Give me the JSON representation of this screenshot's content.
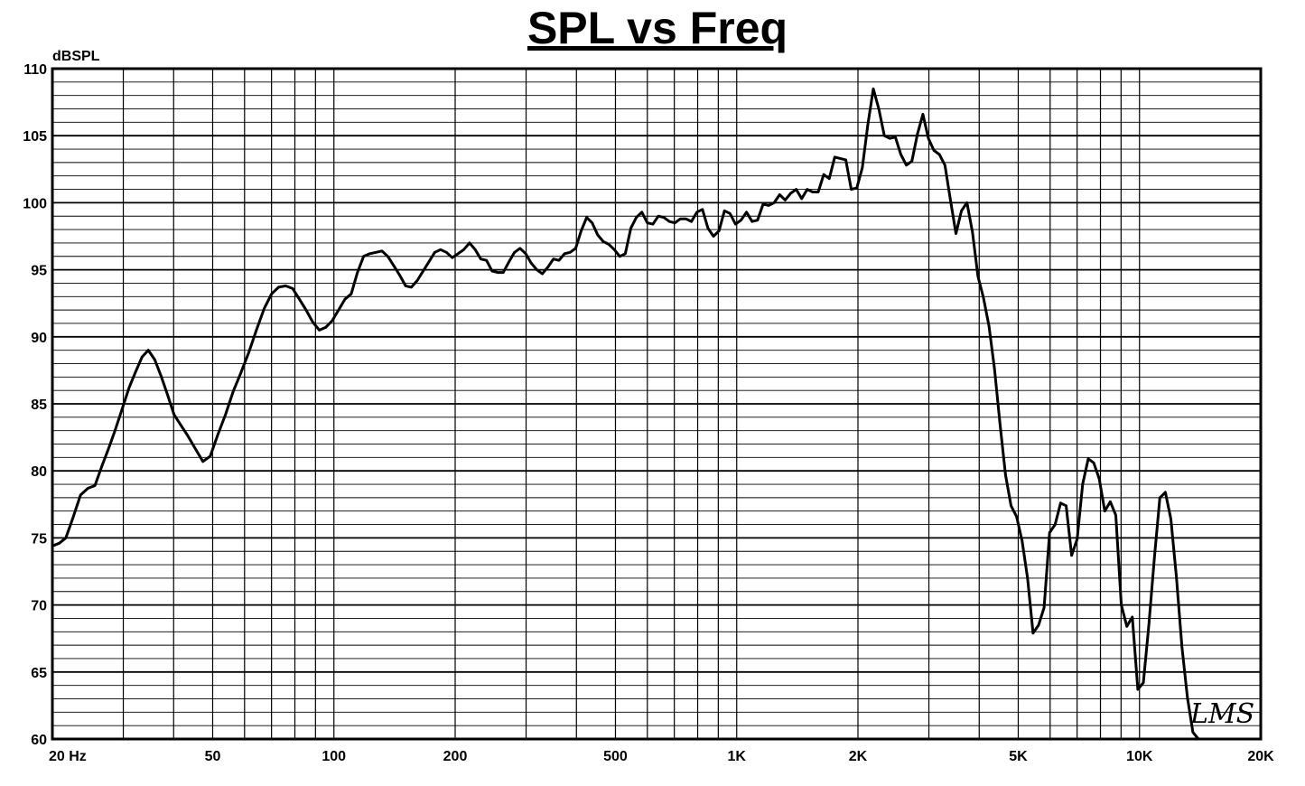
{
  "chart_data": {
    "type": "line",
    "title": "SPL vs Freq",
    "ylabel": "dBSPL",
    "xlabel": "",
    "x_scale": "log",
    "xlim": [
      20,
      20000
    ],
    "ylim": [
      60,
      110
    ],
    "y_ticks": [
      60,
      65,
      70,
      75,
      80,
      85,
      90,
      95,
      100,
      105,
      110
    ],
    "y_tick_labels": [
      "60",
      "65",
      "70",
      "75",
      "80",
      "85",
      "90",
      "95",
      "100",
      "105",
      "110"
    ],
    "x_ticks": [
      20,
      50,
      100,
      200,
      500,
      1000,
      2000,
      5000,
      10000,
      20000
    ],
    "x_tick_labels": [
      "20  Hz",
      "50",
      "100",
      "200",
      "500",
      "1K",
      "2K",
      "5K",
      "10K",
      "20K"
    ],
    "grid": true,
    "logo_text": "LMS",
    "series": [
      {
        "name": "",
        "color": "#000000",
        "points": [
          [
            20,
            74.4
          ],
          [
            20.8,
            74.6
          ],
          [
            21.6,
            75.0
          ],
          [
            22.5,
            76.5
          ],
          [
            23.5,
            78.2
          ],
          [
            24.5,
            78.7
          ],
          [
            25.5,
            78.9
          ],
          [
            26.5,
            80.3
          ],
          [
            27.6,
            81.7
          ],
          [
            28.6,
            83.0
          ],
          [
            29.8,
            84.6
          ],
          [
            31.0,
            86.2
          ],
          [
            32.2,
            87.4
          ],
          [
            33.4,
            88.5
          ],
          [
            34.6,
            89.0
          ],
          [
            35.9,
            88.3
          ],
          [
            37.2,
            87.1
          ],
          [
            38.6,
            85.7
          ],
          [
            40.1,
            84.2
          ],
          [
            41.7,
            83.4
          ],
          [
            43.4,
            82.6
          ],
          [
            45.2,
            81.7
          ],
          [
            47.3,
            80.7
          ],
          [
            49.3,
            81.1
          ],
          [
            51.5,
            82.7
          ],
          [
            53.8,
            84.2
          ],
          [
            56.2,
            85.9
          ],
          [
            58.7,
            87.3
          ],
          [
            61.4,
            88.8
          ],
          [
            64.2,
            90.5
          ],
          [
            67.1,
            92.1
          ],
          [
            70.0,
            93.2
          ],
          [
            72.9,
            93.7
          ],
          [
            75.9,
            93.8
          ],
          [
            79.0,
            93.6
          ],
          [
            82.1,
            92.8
          ],
          [
            85.3,
            92.0
          ],
          [
            88.6,
            91.1
          ],
          [
            92.0,
            90.5
          ],
          [
            95.4,
            90.7
          ],
          [
            99.0,
            91.2
          ],
          [
            102.7,
            92.0
          ],
          [
            106.5,
            92.8
          ],
          [
            110.4,
            93.2
          ],
          [
            114.4,
            94.8
          ],
          [
            118.5,
            96.0
          ],
          [
            122.8,
            96.2
          ],
          [
            127.2,
            96.3
          ],
          [
            131.6,
            96.4
          ],
          [
            136.1,
            96.0
          ],
          [
            140.8,
            95.3
          ],
          [
            145.6,
            94.6
          ],
          [
            150.6,
            93.8
          ],
          [
            155.7,
            93.7
          ],
          [
            161.0,
            94.2
          ],
          [
            166.5,
            94.9
          ],
          [
            172.2,
            95.6
          ],
          [
            178.0,
            96.3
          ],
          [
            184.0,
            96.5
          ],
          [
            190.2,
            96.3
          ],
          [
            196.7,
            95.9
          ],
          [
            203.3,
            96.2
          ],
          [
            210.1,
            96.5
          ],
          [
            217.1,
            97.0
          ],
          [
            224.3,
            96.5
          ],
          [
            231.6,
            95.8
          ],
          [
            239.2,
            95.7
          ],
          [
            247.0,
            94.9
          ],
          [
            255.1,
            94.8
          ],
          [
            263.4,
            94.8
          ],
          [
            272.0,
            95.6
          ],
          [
            280.8,
            96.3
          ],
          [
            289.9,
            96.6
          ],
          [
            299.3,
            96.2
          ],
          [
            308.9,
            95.5
          ],
          [
            318.9,
            95.0
          ],
          [
            329.2,
            94.7
          ],
          [
            339.8,
            95.2
          ],
          [
            350.8,
            95.8
          ],
          [
            362.1,
            95.7
          ],
          [
            373.8,
            96.2
          ],
          [
            385.8,
            96.3
          ],
          [
            398.2,
            96.6
          ],
          [
            411.0,
            97.9
          ],
          [
            424.2,
            98.9
          ],
          [
            437.8,
            98.5
          ],
          [
            451.8,
            97.6
          ],
          [
            466.3,
            97.1
          ],
          [
            481.3,
            96.9
          ],
          [
            496.7,
            96.5
          ],
          [
            512.6,
            96.0
          ],
          [
            529.0,
            96.2
          ],
          [
            545.9,
            98.1
          ],
          [
            563.4,
            98.9
          ],
          [
            581.4,
            99.3
          ],
          [
            600.0,
            98.5
          ],
          [
            619.2,
            98.4
          ],
          [
            639.0,
            99.0
          ],
          [
            659.4,
            98.9
          ],
          [
            680.5,
            98.6
          ],
          [
            702.3,
            98.5
          ],
          [
            724.8,
            98.8
          ],
          [
            748.0,
            98.8
          ],
          [
            772.0,
            98.6
          ],
          [
            796.7,
            99.3
          ],
          [
            822.2,
            99.5
          ],
          [
            848.5,
            98.1
          ],
          [
            875.6,
            97.5
          ],
          [
            903.7,
            97.9
          ],
          [
            932.6,
            99.4
          ],
          [
            962.5,
            99.2
          ],
          [
            993.3,
            98.4
          ],
          [
            1025.1,
            98.7
          ],
          [
            1057.9,
            99.3
          ],
          [
            1091.8,
            98.6
          ],
          [
            1126.7,
            98.7
          ],
          [
            1162.8,
            99.9
          ],
          [
            1200.0,
            99.8
          ],
          [
            1238.4,
            100.0
          ],
          [
            1278.0,
            100.6
          ],
          [
            1318.9,
            100.2
          ],
          [
            1361.1,
            100.7
          ],
          [
            1404.7,
            101.0
          ],
          [
            1449.7,
            100.3
          ],
          [
            1496.1,
            101.0
          ],
          [
            1544.0,
            100.8
          ],
          [
            1593.4,
            100.8
          ],
          [
            1644.4,
            102.1
          ],
          [
            1697.0,
            101.8
          ],
          [
            1751.3,
            103.4
          ],
          [
            1807.3,
            103.3
          ],
          [
            1865.2,
            103.2
          ],
          [
            1924.9,
            101.0
          ],
          [
            1986.5,
            101.1
          ],
          [
            2050.1,
            102.6
          ],
          [
            2115.7,
            105.8
          ],
          [
            2183.4,
            108.5
          ],
          [
            2253.3,
            107.0
          ],
          [
            2325.4,
            105.0
          ],
          [
            2399.8,
            104.8
          ],
          [
            2476.6,
            104.9
          ],
          [
            2555.9,
            103.6
          ],
          [
            2637.7,
            102.8
          ],
          [
            2722.1,
            103.1
          ],
          [
            2809.2,
            105.1
          ],
          [
            2899.1,
            106.6
          ],
          [
            2991.9,
            104.8
          ],
          [
            3087.6,
            103.9
          ],
          [
            3186.4,
            103.6
          ],
          [
            3288.4,
            102.8
          ],
          [
            3393.6,
            100.2
          ],
          [
            3502.2,
            97.7
          ],
          [
            3614.3,
            99.4
          ],
          [
            3730.0,
            100.0
          ],
          [
            3849.3,
            97.8
          ],
          [
            3972.5,
            94.5
          ],
          [
            4099.6,
            92.9
          ],
          [
            4230.8,
            90.8
          ],
          [
            4366.2,
            87.6
          ],
          [
            4505.9,
            83.5
          ],
          [
            4650.1,
            79.7
          ],
          [
            4798.9,
            77.4
          ],
          [
            4952.5,
            76.6
          ],
          [
            5111.0,
            74.8
          ],
          [
            5274.5,
            72.0
          ],
          [
            5443.3,
            67.9
          ],
          [
            5617.5,
            68.5
          ],
          [
            5797.3,
            69.8
          ],
          [
            5982.8,
            75.4
          ],
          [
            6174.3,
            76.0
          ],
          [
            6371.9,
            77.6
          ],
          [
            6575.8,
            77.4
          ],
          [
            6786.2,
            73.7
          ],
          [
            7003.4,
            74.9
          ],
          [
            7227.5,
            79.0
          ],
          [
            7458.8,
            80.9
          ],
          [
            7697.5,
            80.6
          ],
          [
            7943.8,
            79.4
          ],
          [
            8198.0,
            77.0
          ],
          [
            8460.3,
            77.7
          ],
          [
            8731.1,
            76.7
          ],
          [
            9010.5,
            70.0
          ],
          [
            9298.8,
            68.4
          ],
          [
            9596.4,
            69.1
          ],
          [
            9903.5,
            63.7
          ],
          [
            10220.4,
            64.2
          ],
          [
            10547.5,
            68.5
          ],
          [
            10885.0,
            73.5
          ],
          [
            11233.3,
            78.0
          ],
          [
            11592.8,
            78.4
          ],
          [
            11963.8,
            76.4
          ],
          [
            12346.6,
            72.1
          ],
          [
            12741.7,
            66.9
          ],
          [
            13149.5,
            63.1
          ],
          [
            13570.3,
            60.5
          ],
          [
            14004.5,
            60.0
          ]
        ]
      }
    ]
  }
}
